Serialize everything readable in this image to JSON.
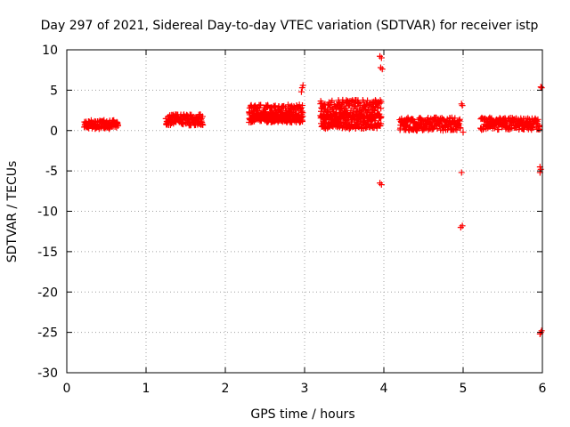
{
  "chart_data": {
    "type": "scatter",
    "title": "Day 297 of 2021, Sidereal Day-to-day VTEC variation (SDTVAR) for receiver istp",
    "xlabel": "GPS time / hours",
    "ylabel": "SDTVAR / TECUs",
    "xlim": [
      0,
      6
    ],
    "ylim": [
      -30,
      10
    ],
    "xticks": [
      0,
      1,
      2,
      3,
      4,
      5,
      6
    ],
    "yticks": [
      10,
      5,
      0,
      -5,
      -10,
      -15,
      -20,
      -25,
      -30
    ],
    "grid": true,
    "marker": "plus",
    "color": "#ff0000",
    "series": [
      {
        "name": "SDTVAR",
        "clusters": [
          {
            "x_start": 0.22,
            "x_end": 0.65,
            "y_low": 0.2,
            "y_high": 1.3
          },
          {
            "x_start": 1.25,
            "x_end": 1.72,
            "y_low": 0.6,
            "y_high": 2.0
          },
          {
            "x_start": 2.3,
            "x_end": 2.98,
            "y_low": 1.2,
            "y_high": 3.2
          },
          {
            "x_start": 2.3,
            "x_end": 2.98,
            "y_low": 1.0,
            "y_high": 2.0
          },
          {
            "x_start": 3.2,
            "x_end": 3.97,
            "y_low": 1.5,
            "y_high": 3.8
          },
          {
            "x_start": 3.2,
            "x_end": 3.97,
            "y_low": 0.2,
            "y_high": 2.0
          },
          {
            "x_start": 4.2,
            "x_end": 4.97,
            "y_low": 0.0,
            "y_high": 1.6
          },
          {
            "x_start": 5.22,
            "x_end": 5.97,
            "y_low": 0.1,
            "y_high": 1.6
          }
        ],
        "points": [
          [
            2.97,
            5.3
          ],
          [
            2.96,
            4.8
          ],
          [
            2.98,
            5.6
          ],
          [
            3.95,
            9.2
          ],
          [
            3.97,
            9.0
          ],
          [
            3.96,
            7.8
          ],
          [
            3.98,
            7.6
          ],
          [
            3.95,
            -6.5
          ],
          [
            3.97,
            -6.7
          ],
          [
            4.98,
            3.3
          ],
          [
            4.99,
            3.1
          ],
          [
            5.0,
            -0.2
          ],
          [
            4.98,
            -5.2
          ],
          [
            4.97,
            -12.0
          ],
          [
            4.99,
            -11.8
          ],
          [
            5.98,
            5.4
          ],
          [
            5.99,
            5.3
          ],
          [
            5.97,
            -4.5
          ],
          [
            5.98,
            -4.8
          ],
          [
            5.97,
            -5.2
          ],
          [
            5.98,
            -25.0
          ],
          [
            5.97,
            -25.2
          ],
          [
            5.99,
            -24.8
          ]
        ]
      }
    ]
  }
}
